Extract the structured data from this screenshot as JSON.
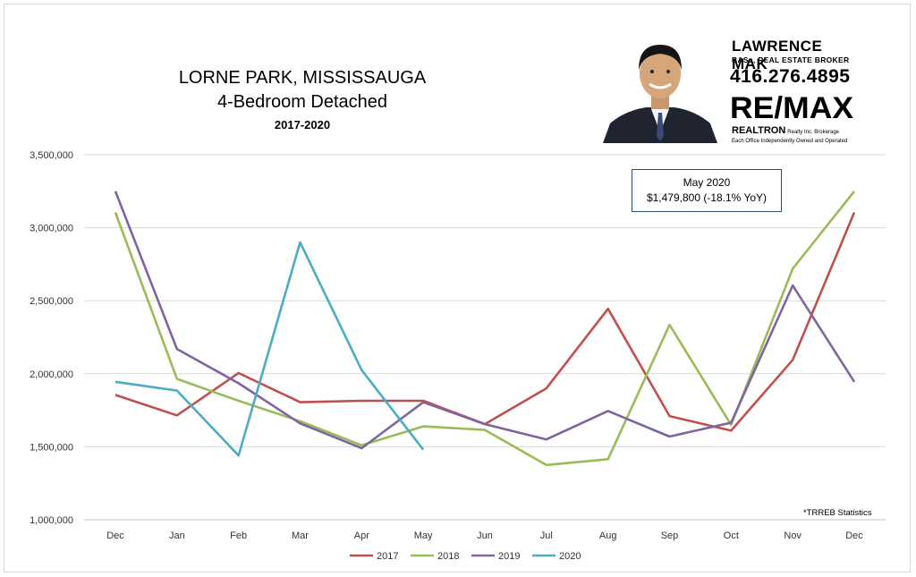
{
  "title": {
    "line1": "LORNE PARK, MISSISSAUGA",
    "line2": "4-Bedroom Detached",
    "line3": "2017-2020"
  },
  "agent": {
    "name": "LAWRENCE MAK",
    "credentials": "BASc, REAL ESTATE BROKER",
    "phone": "416.276.4895",
    "brand": "RE/MAX",
    "brokerage": "REALTRON",
    "brokerage_detail": "Realty Inc. Brokerage",
    "office_note": "Each Office Independently Owned and Operated"
  },
  "callout": {
    "title": "May 2020",
    "value": "$1,479,800  (-18.1% YoY)"
  },
  "source_note": "*TRREB Statistics",
  "chart_data": {
    "type": "line",
    "title": "",
    "xlabel": "",
    "ylabel": "",
    "categories": [
      "Dec",
      "Jan",
      "Feb",
      "Mar",
      "Apr",
      "May",
      "Jun",
      "Jul",
      "Aug",
      "Sep",
      "Oct",
      "Nov",
      "Dec"
    ],
    "ylim": [
      1000000,
      3500000
    ],
    "yticks": [
      1000000,
      1500000,
      2000000,
      2500000,
      3000000,
      3500000
    ],
    "ytick_labels": [
      "1,000,000",
      "1,500,000",
      "2,000,000",
      "2,500,000",
      "3,000,000",
      "3,500,000"
    ],
    "grid": "horizontal",
    "legend_position": "bottom",
    "series": [
      {
        "name": "2017",
        "color": "#c0504d",
        "values": [
          1855000,
          1715000,
          2005000,
          1805000,
          1815000,
          1815000,
          1655000,
          1900000,
          2445000,
          1710000,
          1610000,
          2095000,
          3105000
        ]
      },
      {
        "name": "2018",
        "color": "#9bbb59",
        "values": [
          3105000,
          1965000,
          1815000,
          1675000,
          1510000,
          1640000,
          1615000,
          1375000,
          1415000,
          2335000,
          1650000,
          2720000,
          3250000
        ]
      },
      {
        "name": "2019",
        "color": "#8064a2",
        "values": [
          3250000,
          2170000,
          1935000,
          1660000,
          1490000,
          1805000,
          1655000,
          1550000,
          1745000,
          1570000,
          1665000,
          2605000,
          1945000
        ]
      },
      {
        "name": "2020",
        "color": "#4bacc6",
        "values": [
          1945000,
          1885000,
          1440000,
          2900000,
          2025000,
          1479800,
          null,
          null,
          null,
          null,
          null,
          null,
          null
        ]
      }
    ]
  }
}
